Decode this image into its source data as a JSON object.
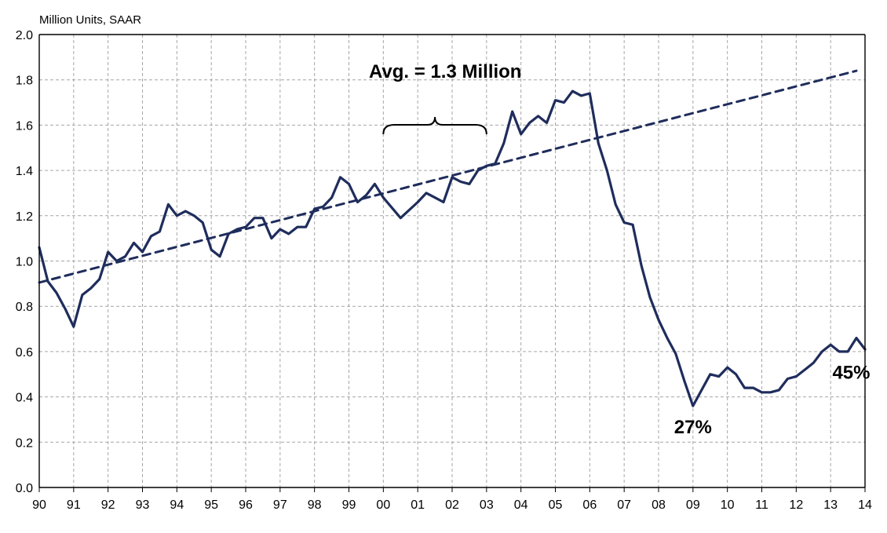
{
  "chart_data": {
    "type": "line",
    "unit_label": "Million Units, SAAR",
    "ylim": [
      0.0,
      2.0
    ],
    "y_ticks": [
      "0.0",
      "0.2",
      "0.4",
      "0.6",
      "0.8",
      "1.0",
      "1.2",
      "1.4",
      "1.6",
      "1.8",
      "2.0"
    ],
    "x_ticks": [
      "90",
      "91",
      "92",
      "93",
      "94",
      "95",
      "96",
      "97",
      "98",
      "99",
      "00",
      "01",
      "02",
      "03",
      "04",
      "05",
      "06",
      "07",
      "08",
      "09",
      "10",
      "11",
      "12",
      "13",
      "14"
    ],
    "x_range": [
      1990.0,
      2014.0
    ],
    "grid": true,
    "series": [
      {
        "style": "solid",
        "color": "#1f2d5c",
        "x": [
          1990.0,
          1990.25,
          1990.5,
          1990.75,
          1991.0,
          1991.25,
          1991.5,
          1991.75,
          1992.0,
          1992.25,
          1992.5,
          1992.75,
          1993.0,
          1993.25,
          1993.5,
          1993.75,
          1994.0,
          1994.25,
          1994.5,
          1994.75,
          1995.0,
          1995.25,
          1995.5,
          1995.75,
          1996.0,
          1996.25,
          1996.5,
          1996.75,
          1997.0,
          1997.25,
          1997.5,
          1997.75,
          1998.0,
          1998.25,
          1998.5,
          1998.75,
          1999.0,
          1999.25,
          1999.5,
          1999.75,
          2000.0,
          2000.5,
          2001.0,
          2001.25,
          2001.5,
          2001.75,
          2002.0,
          2002.25,
          2002.5,
          2002.75,
          2003.0,
          2003.25,
          2003.5,
          2003.75,
          2004.0,
          2004.25,
          2004.5,
          2004.75,
          2005.0,
          2005.25,
          2005.5,
          2005.75,
          2006.0,
          2006.25,
          2006.5,
          2006.75,
          2007.0,
          2007.25,
          2007.5,
          2007.75,
          2008.0,
          2008.25,
          2008.5,
          2008.75,
          2009.0,
          2009.25,
          2009.5,
          2009.75,
          2010.0,
          2010.25,
          2010.5,
          2010.75,
          2011.0,
          2011.25,
          2011.5,
          2011.75,
          2012.0,
          2012.25,
          2012.5,
          2012.75,
          2013.0,
          2013.25,
          2013.5,
          2013.75,
          2014.0
        ],
        "values": [
          1.06,
          0.91,
          0.86,
          0.79,
          0.71,
          0.85,
          0.88,
          0.92,
          1.04,
          1.0,
          1.02,
          1.08,
          1.04,
          1.11,
          1.13,
          1.25,
          1.2,
          1.22,
          1.2,
          1.17,
          1.05,
          1.02,
          1.12,
          1.14,
          1.15,
          1.19,
          1.19,
          1.1,
          1.14,
          1.12,
          1.15,
          1.15,
          1.23,
          1.24,
          1.28,
          1.37,
          1.34,
          1.26,
          1.29,
          1.34,
          1.28,
          1.19,
          1.26,
          1.3,
          1.28,
          1.26,
          1.37,
          1.35,
          1.34,
          1.4,
          1.42,
          1.43,
          1.52,
          1.66,
          1.56,
          1.61,
          1.64,
          1.61,
          1.71,
          1.7,
          1.75,
          1.73,
          1.74,
          1.52,
          1.4,
          1.25,
          1.17,
          1.16,
          0.98,
          0.84,
          0.74,
          0.66,
          0.59,
          0.47,
          0.36,
          0.43,
          0.5,
          0.49,
          0.53,
          0.5,
          0.44,
          0.44,
          0.42,
          0.42,
          0.43,
          0.48,
          0.49,
          0.52,
          0.55,
          0.6,
          0.63,
          0.6,
          0.6,
          0.66,
          0.61
        ]
      },
      {
        "style": "dashed",
        "color": "#1f2d5c",
        "x": [
          1990.0,
          2013.75
        ],
        "values": [
          0.905,
          1.84
        ]
      }
    ],
    "annotations": [
      {
        "text": "Avg. = 1.3 Million",
        "x": 2001.8,
        "y": 1.81
      },
      {
        "text": "27%",
        "x": 2009.0,
        "y": 0.24
      },
      {
        "text": "45%",
        "x": 2013.6,
        "y": 0.48
      }
    ],
    "brace": {
      "x_start": 2000.0,
      "x_end": 2003.0,
      "y": 1.56
    }
  }
}
